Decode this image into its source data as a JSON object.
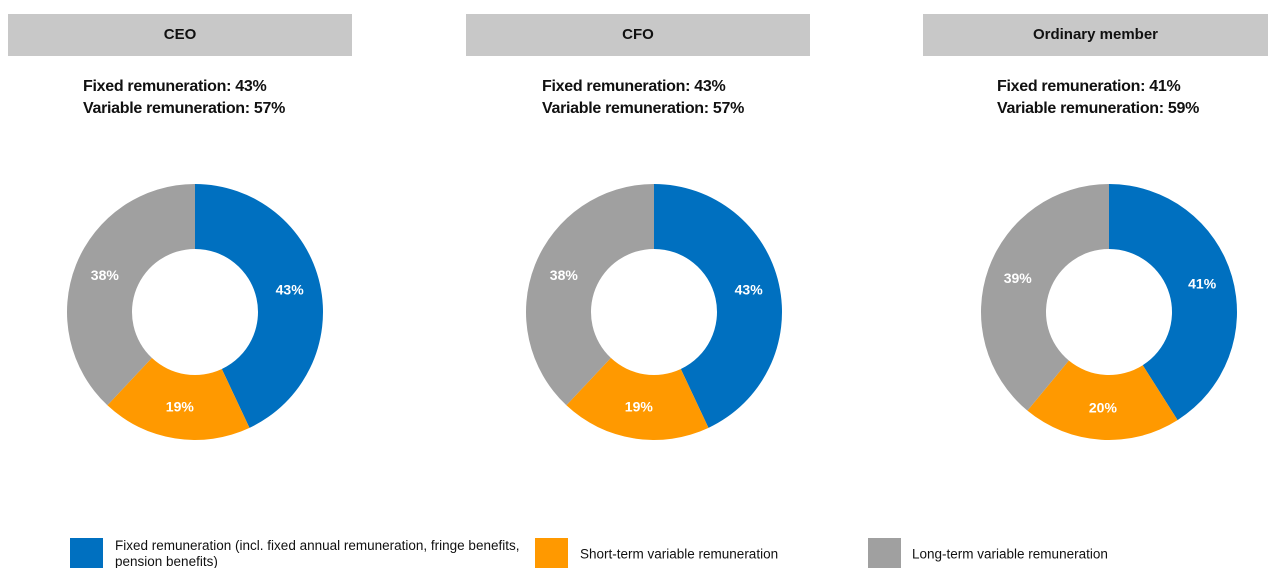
{
  "chart_data": [
    {
      "type": "pie",
      "title": "CEO",
      "annotations": [
        "Fixed remuneration: 43%",
        "Variable remuneration: 57%"
      ],
      "values": [
        43,
        19,
        38
      ],
      "value_labels": [
        "43%",
        "19%",
        "38%"
      ]
    },
    {
      "type": "pie",
      "title": "CFO",
      "annotations": [
        "Fixed remuneration: 43%",
        "Variable remuneration: 57%"
      ],
      "values": [
        43,
        19,
        38
      ],
      "value_labels": [
        "43%",
        "19%",
        "38%"
      ]
    },
    {
      "type": "pie",
      "title": "Ordinary member",
      "annotations": [
        "Fixed remuneration: 41%",
        "Variable remuneration: 59%"
      ],
      "values": [
        41,
        20,
        39
      ],
      "value_labels": [
        "41%",
        "20%",
        "39%"
      ]
    }
  ],
  "legend": [
    {
      "name": "Fixed remuneration (incl. fixed annual remuneration, fringe benefits, pension benefits)",
      "color": "#0070c0"
    },
    {
      "name": "Short-term variable remuneration",
      "color": "#ff9900"
    },
    {
      "name": "Long-term variable remuneration",
      "color": "#a0a0a0"
    }
  ]
}
